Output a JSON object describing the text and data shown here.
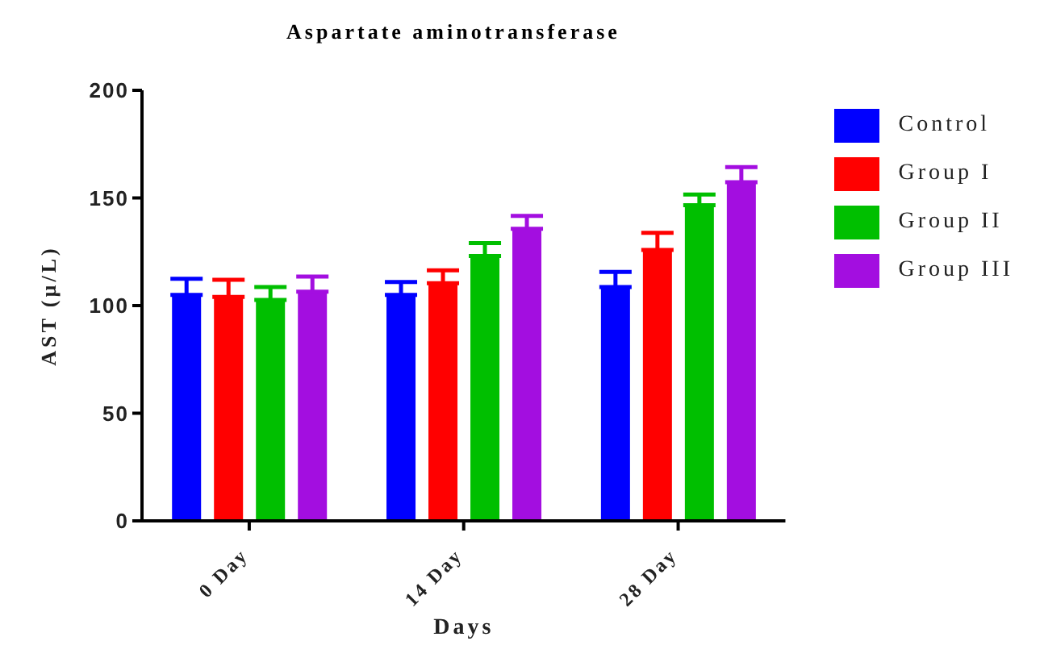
{
  "chart_data": {
    "type": "bar",
    "title": "Aspartate aminotransferase",
    "xlabel": "Days",
    "ylabel": "AST (µ/L)",
    "categories": [
      "0 Day",
      "14 Day",
      "28 Day"
    ],
    "series": [
      {
        "name": "Control",
        "color": "#0000ff",
        "values": [
          105,
          105,
          108.6
        ],
        "errors": [
          7.5,
          6,
          7
        ]
      },
      {
        "name": "Group I",
        "color": "#ff0000",
        "values": [
          104,
          110.4,
          125.8
        ],
        "errors": [
          8,
          6,
          8
        ]
      },
      {
        "name": "Group II",
        "color": "#00bf00",
        "values": [
          102.6,
          123,
          146.6
        ],
        "errors": [
          6,
          6,
          5
        ]
      },
      {
        "name": "Group III",
        "color": "#a30ee0",
        "values": [
          106.5,
          135.7,
          157.3
        ],
        "errors": [
          7,
          6,
          7
        ]
      }
    ],
    "ylim": [
      0,
      200
    ],
    "yticks": [
      0,
      50,
      100,
      150,
      200
    ],
    "legend": "top right"
  }
}
